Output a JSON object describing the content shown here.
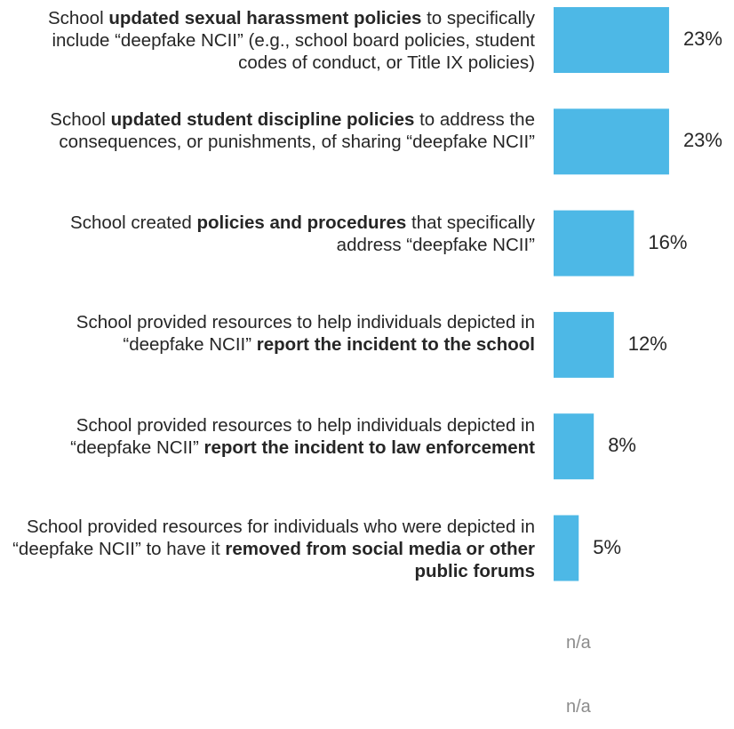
{
  "chart_data": {
    "type": "bar",
    "orientation": "horizontal",
    "bar_color": "#4db8e6",
    "text_color": "#262626",
    "na_color": "#8c8c8c",
    "categories": [
      [
        {
          "t": "School ",
          "b": false
        },
        {
          "t": "updated sexual harassment policies",
          "b": true
        },
        {
          "t": " to specifically include “deepfake NCII” (e.g., school board policies, student codes of conduct, or Title IX policies)",
          "b": false
        }
      ],
      [
        {
          "t": "School ",
          "b": false
        },
        {
          "t": "updated student discipline policies",
          "b": true
        },
        {
          "t": " to address the consequences, or punishments, of sharing “deepfake NCII”",
          "b": false
        }
      ],
      [
        {
          "t": "School created ",
          "b": false
        },
        {
          "t": "policies and procedures",
          "b": true
        },
        {
          "t": " that specifically address “deepfake NCII”",
          "b": false
        }
      ],
      [
        {
          "t": "School provided resources to help individuals depicted in “deepfake NCII” ",
          "b": false
        },
        {
          "t": "report the incident to the school",
          "b": true
        }
      ],
      [
        {
          "t": "School provided resources to help individuals depicted in “deepfake NCII” ",
          "b": false
        },
        {
          "t": "report the incident to law enforcement",
          "b": true
        }
      ],
      [
        {
          "t": "School provided resources for individuals who were depicted in “deepfake NCII” to have it ",
          "b": false
        },
        {
          "t": "removed from social media or other public forums",
          "b": true
        }
      ],
      [],
      []
    ],
    "values": [
      23,
      23,
      16,
      12,
      8,
      5,
      null,
      null
    ],
    "value_labels": [
      "23%",
      "23%",
      "16%",
      "12%",
      "8%",
      "5%",
      "n/a",
      "n/a"
    ]
  }
}
